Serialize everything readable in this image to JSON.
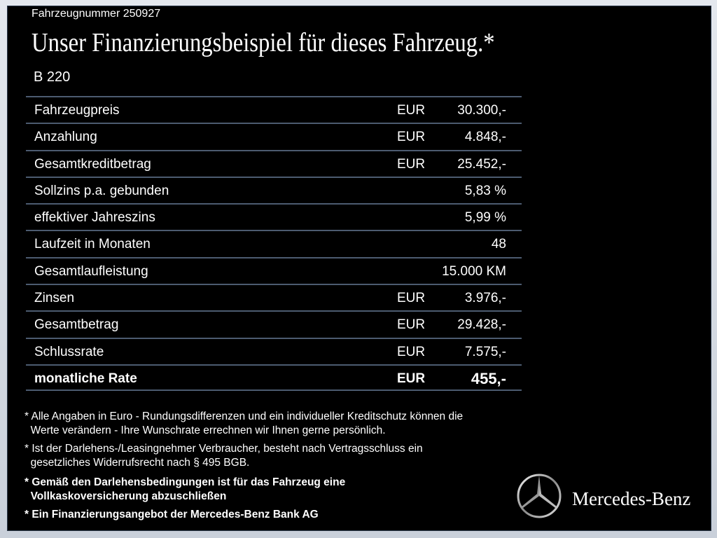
{
  "vehicle_number": "Fahrzeugnummer 250927",
  "title": "Unser Finanzierungsbeispiel für dieses Fahrzeug.*",
  "model": "B 220",
  "rows": [
    {
      "label": "Fahrzeugpreis",
      "currency": "EUR",
      "value": "30.300,-"
    },
    {
      "label": "Anzahlung",
      "currency": "EUR",
      "value": "4.848,-"
    },
    {
      "label": "Gesamtkreditbetrag",
      "currency": "EUR",
      "value": "25.452,-"
    },
    {
      "label": "Sollzins p.a. gebunden",
      "currency": "",
      "value": "5,83 %"
    },
    {
      "label": "effektiver Jahreszins",
      "currency": "",
      "value": "5,99 %"
    },
    {
      "label": "Laufzeit in Monaten",
      "currency": "",
      "value": "48"
    },
    {
      "label": "Gesamtlaufleistung",
      "currency": "",
      "value": "15.000 KM"
    },
    {
      "label": "Zinsen",
      "currency": "EUR",
      "value": "3.976,-"
    },
    {
      "label": "Gesamtbetrag",
      "currency": "EUR",
      "value": "29.428,-"
    },
    {
      "label": "Schlussrate",
      "currency": "EUR",
      "value": "7.575,-"
    },
    {
      "label": "monatliche Rate",
      "currency": "EUR",
      "value": "455,-",
      "bold": true
    }
  ],
  "notes": [
    {
      "line1": "* Alle Angaben in Euro - Rundungsdifferenzen und ein individueller Kreditschutz können die",
      "line2": "  Werte verändern - Ihre Wunschrate errechnen wir Ihnen gerne persönlich."
    },
    {
      "line1": "* Ist der Darlehens-/Leasingnehmer Verbraucher, besteht nach Vertragsschluss ein",
      "line2": "  gesetzliches Widerrufsrecht nach § 495 BGB."
    },
    {
      "line1": "* Gemäß den Darlehensbedingungen ist für das Fahrzeug eine",
      "line2": "  Vollkaskoversicherung abzuschließen",
      "bold": true
    },
    {
      "line1": "* Ein Finanzierungsangebot der Mercedes-Benz Bank AG",
      "line2": "",
      "bold": true
    }
  ],
  "brand": "Mercedes-Benz"
}
